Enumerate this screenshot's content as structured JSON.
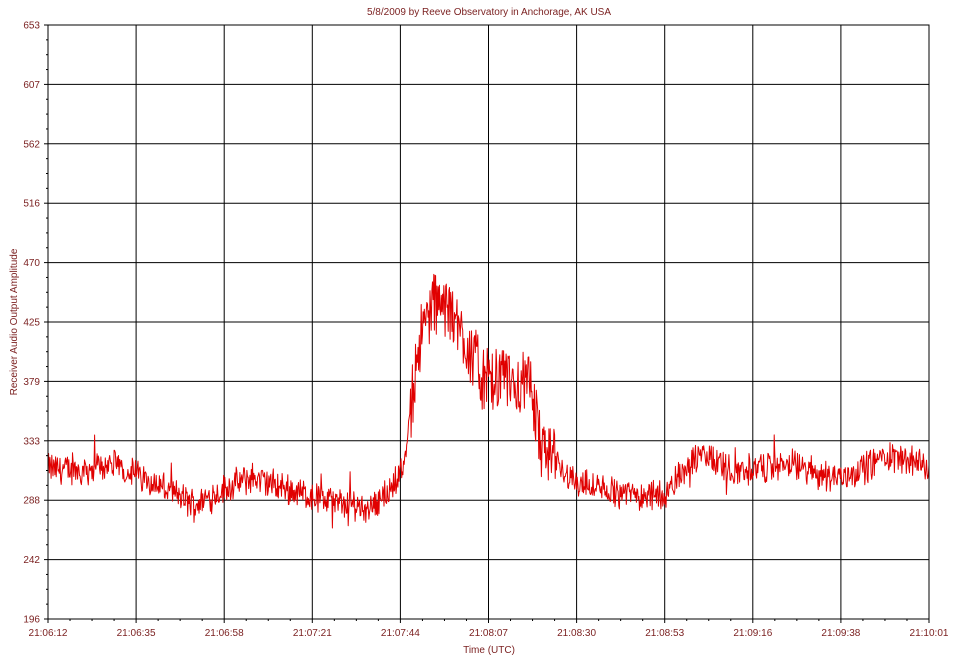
{
  "chart_data": {
    "type": "line",
    "title": "5/8/2009  by  Reeve Observatory  in  Anchorage, AK  USA",
    "xlabel": "Time (UTC)",
    "ylabel": "Receiver Audio Output Amplitude",
    "x_tick_labels": [
      "21:06:12",
      "21:06:35",
      "21:06:58",
      "21:07:21",
      "21:07:44",
      "21:08:07",
      "21:08:30",
      "21:08:53",
      "21:09:16",
      "21:09:38",
      "21:10:01"
    ],
    "y_tick_labels": [
      "196",
      "242",
      "288",
      "333",
      "379",
      "425",
      "470",
      "516",
      "562",
      "607",
      "653"
    ],
    "xlim": [
      "21:06:12",
      "21:10:01"
    ],
    "ylim": [
      196,
      653
    ],
    "grid": true,
    "line_color": "#e00000",
    "series": [
      {
        "x": [
          "21:06:12",
          "21:06:20",
          "21:06:28",
          "21:06:35",
          "21:06:40",
          "21:06:45",
          "21:06:50",
          "21:06:58",
          "21:07:05",
          "21:07:12",
          "21:07:21",
          "21:07:28",
          "21:07:35",
          "21:07:40",
          "21:07:44",
          "21:07:46",
          "21:07:48",
          "21:07:52",
          "21:07:56",
          "21:08:00",
          "21:08:04",
          "21:08:07",
          "21:08:10",
          "21:08:14",
          "21:08:18",
          "21:08:20",
          "21:08:23",
          "21:08:30",
          "21:08:38",
          "21:08:46",
          "21:08:53",
          "21:08:58",
          "21:09:03",
          "21:09:10",
          "21:09:16",
          "21:09:25",
          "21:09:32",
          "21:09:38",
          "21:09:44",
          "21:09:50",
          "21:09:56",
          "21:10:01"
        ],
        "y": [
          312,
          310,
          315,
          308,
          300,
          292,
          284,
          296,
          305,
          298,
          290,
          285,
          282,
          292,
          310,
          345,
          405,
          440,
          432,
          415,
          388,
          375,
          382,
          378,
          372,
          330,
          318,
          300,
          294,
          292,
          292,
          315,
          322,
          310,
          312,
          315,
          308,
          305,
          312,
          322,
          318,
          312
        ]
      }
    ]
  }
}
